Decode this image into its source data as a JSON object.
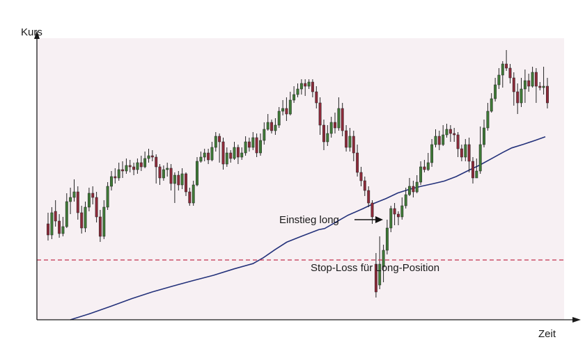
{
  "chart_data": {
    "type": "candlestick",
    "xlabel": "Zeit",
    "ylabel": "Kurs",
    "grid": false,
    "ylim": [
      0,
      100
    ],
    "colors": {
      "plot_background": "#f7f0f3",
      "bull_candle": "#3f7a37",
      "bear_candle": "#8e2a3a",
      "moving_average": "#23317a",
      "stop_loss_line": "#c2314d",
      "axis": "#1a1a1a"
    },
    "candles": [
      [
        34.5,
        30.5,
        38.5,
        28.5
      ],
      [
        30.5,
        38.5,
        40.5,
        29
      ],
      [
        39,
        35.5,
        43,
        33.5
      ],
      [
        35.5,
        31,
        38,
        29.5
      ],
      [
        31,
        33.5,
        37,
        30
      ],
      [
        33.5,
        42.5,
        45.5,
        33
      ],
      [
        42.5,
        44,
        47.5,
        38
      ],
      [
        44,
        46,
        50.5,
        42.5
      ],
      [
        46,
        38.5,
        48,
        36
      ],
      [
        38.5,
        33,
        41,
        31
      ],
      [
        33,
        40.5,
        42.5,
        31.5
      ],
      [
        40.5,
        45.5,
        47.5,
        39
      ],
      [
        45.5,
        44,
        48,
        41.5
      ],
      [
        44,
        37,
        46,
        35
      ],
      [
        37,
        30,
        39.5,
        28
      ],
      [
        30,
        40.5,
        43,
        29
      ],
      [
        40.5,
        48,
        49.5,
        39.5
      ],
      [
        48,
        51.5,
        53.5,
        46.5
      ],
      [
        51.5,
        51,
        54.5,
        49
      ],
      [
        51,
        54,
        56.5,
        50
      ],
      [
        54,
        53.5,
        57,
        51
      ],
      [
        53.5,
        55.5,
        58,
        52.5
      ],
      [
        55.5,
        55,
        57.5,
        53
      ],
      [
        55,
        54,
        56.5,
        52
      ],
      [
        54,
        56.5,
        58,
        52.5
      ],
      [
        56.5,
        55,
        59,
        53.5
      ],
      [
        55,
        58,
        60.5,
        54.5
      ],
      [
        58,
        59,
        61.5,
        56.5
      ],
      [
        59,
        58.5,
        61,
        57
      ],
      [
        58.5,
        55,
        59.5,
        49
      ],
      [
        55,
        51,
        56,
        48.5
      ],
      [
        51,
        54,
        55.5,
        50
      ],
      [
        54,
        54.5,
        56.5,
        51.5
      ],
      [
        54.5,
        49,
        56,
        46.5
      ],
      [
        49,
        52,
        53,
        42
      ],
      [
        52,
        48.5,
        53.5,
        46.5
      ],
      [
        48.5,
        52.5,
        54.5,
        47
      ],
      [
        52.5,
        46,
        53,
        44.5
      ],
      [
        46,
        42,
        47.5,
        41
      ],
      [
        42,
        48.5,
        50,
        41
      ],
      [
        48.5,
        57,
        58.5,
        48
      ],
      [
        57,
        58.5,
        60.5,
        56.5
      ],
      [
        58.5,
        60,
        61.5,
        57
      ],
      [
        60,
        57.5,
        61.5,
        56
      ],
      [
        57.5,
        62,
        64,
        57
      ],
      [
        62,
        66,
        67.5,
        60.5
      ],
      [
        66,
        64,
        67,
        56.5
      ],
      [
        64,
        56,
        65.5,
        54
      ],
      [
        56,
        60,
        62,
        55
      ],
      [
        60,
        58,
        61,
        56.5
      ],
      [
        58,
        62,
        64,
        57.5
      ],
      [
        62,
        58.5,
        63,
        56
      ],
      [
        58.5,
        60,
        62,
        57.5
      ],
      [
        60,
        64,
        66,
        59
      ],
      [
        64,
        62,
        65.5,
        60.5
      ],
      [
        62,
        65.5,
        67.5,
        61
      ],
      [
        65.5,
        60,
        67,
        58.5
      ],
      [
        60,
        64.5,
        67,
        59
      ],
      [
        64.5,
        68.5,
        71,
        63
      ],
      [
        68.5,
        71,
        74,
        68
      ],
      [
        71,
        68,
        72,
        67
      ],
      [
        68,
        70,
        72.5,
        66.5
      ],
      [
        70,
        75,
        76.5,
        69
      ],
      [
        75,
        76,
        79,
        73.5
      ],
      [
        76,
        74,
        80,
        71.5
      ],
      [
        74,
        79,
        82,
        73.5
      ],
      [
        79,
        81,
        84,
        78
      ],
      [
        81,
        83,
        85,
        80
      ],
      [
        83,
        85,
        86.5,
        81
      ],
      [
        85,
        84,
        86.5,
        80.5
      ],
      [
        84,
        85.5,
        86.5,
        83
      ],
      [
        85.5,
        82,
        86.5,
        80
      ],
      [
        82,
        78,
        84,
        76
      ],
      [
        78,
        70,
        80,
        66.5
      ],
      [
        70,
        64,
        72,
        61
      ],
      [
        64,
        67,
        70,
        62.5
      ],
      [
        67,
        71,
        73,
        65.5
      ],
      [
        71,
        69,
        74.5,
        67
      ],
      [
        69,
        76,
        80,
        68
      ],
      [
        76,
        68,
        78,
        66
      ],
      [
        68,
        62,
        70,
        60.5
      ],
      [
        62,
        66,
        69,
        60.5
      ],
      [
        66,
        60,
        68,
        57
      ],
      [
        60,
        53,
        63,
        51.5
      ],
      [
        53,
        50,
        55,
        48
      ],
      [
        50,
        46.5,
        51.5,
        44.5
      ],
      [
        46.5,
        42,
        48,
        40.5
      ],
      [
        42,
        37,
        43,
        34.5
      ],
      [
        20,
        10,
        24,
        8
      ],
      [
        12.5,
        20,
        30,
        11
      ],
      [
        19,
        25,
        27,
        13.5
      ],
      [
        25,
        33,
        36,
        23.5
      ],
      [
        33,
        40,
        41,
        31.5
      ],
      [
        40,
        38,
        42,
        34
      ],
      [
        38,
        37,
        39,
        34
      ],
      [
        37,
        41,
        44,
        36
      ],
      [
        41,
        45,
        47.5,
        40
      ],
      [
        45,
        48,
        51,
        44.5
      ],
      [
        48,
        46,
        50,
        44
      ],
      [
        46,
        49.5,
        52,
        45.5
      ],
      [
        49.5,
        55,
        57,
        48.5
      ],
      [
        55,
        54,
        57.5,
        53
      ],
      [
        54,
        56.5,
        60,
        53.5
      ],
      [
        56.5,
        63,
        65,
        55
      ],
      [
        63,
        66,
        68.5,
        62
      ],
      [
        66,
        63,
        68,
        61
      ],
      [
        63,
        66.5,
        70,
        62.5
      ],
      [
        66.5,
        68.5,
        70.5,
        65.5
      ],
      [
        68.5,
        67,
        70,
        64
      ],
      [
        67,
        66.5,
        69,
        64
      ],
      [
        66.5,
        61.5,
        67.5,
        58.5
      ],
      [
        61.5,
        58.5,
        63,
        57
      ],
      [
        58.5,
        63,
        65,
        57
      ],
      [
        63,
        57,
        65.5,
        53
      ],
      [
        57,
        51,
        58.5,
        49
      ],
      [
        51,
        53.5,
        58,
        51.5
      ],
      [
        53.5,
        63,
        69.5,
        52.5
      ],
      [
        63,
        69,
        72,
        62
      ],
      [
        69,
        75,
        78,
        68
      ],
      [
        75,
        79.5,
        81.5,
        74.5
      ],
      [
        79.5,
        84.5,
        87,
        78.5
      ],
      [
        84.5,
        88,
        90.5,
        83
      ],
      [
        88,
        92,
        93,
        83.5
      ],
      [
        92,
        90.5,
        97,
        89.5
      ],
      [
        90.5,
        87,
        92,
        85
      ],
      [
        87,
        82,
        89,
        77
      ],
      [
        82,
        78,
        85,
        74
      ],
      [
        78,
        83,
        87,
        76.5
      ],
      [
        83,
        86,
        90,
        78
      ],
      [
        86,
        84,
        88.5,
        82
      ],
      [
        84,
        89,
        91,
        83.5
      ],
      [
        89,
        84,
        90.5,
        78
      ],
      [
        84,
        83.5,
        85.5,
        82.5
      ],
      [
        83.5,
        84,
        91,
        81
      ],
      [
        84,
        78,
        87,
        76
      ]
    ],
    "moving_average": [
      [
        0.0,
        0
      ],
      [
        0.07,
        2.3
      ],
      [
        0.14,
        4.9
      ],
      [
        0.21,
        7.6
      ],
      [
        0.28,
        10.0
      ],
      [
        0.35,
        12.1
      ],
      [
        0.42,
        14.1
      ],
      [
        0.49,
        16.0
      ],
      [
        0.56,
        18.3
      ],
      [
        0.625,
        20.2
      ],
      [
        0.66,
        22.3
      ],
      [
        0.7,
        25.2
      ],
      [
        0.74,
        27.9
      ],
      [
        0.79,
        30.0
      ],
      [
        0.85,
        32.4
      ],
      [
        0.87,
        32.8
      ],
      [
        0.91,
        35.2
      ],
      [
        0.95,
        37.6
      ],
      [
        1.0,
        39.9
      ],
      [
        1.04,
        41.9
      ],
      [
        1.08,
        43.6
      ],
      [
        1.12,
        45.6
      ],
      [
        1.16,
        46.9
      ],
      [
        1.2,
        48.0
      ],
      [
        1.24,
        48.9
      ],
      [
        1.28,
        49.9
      ],
      [
        1.32,
        51.5
      ],
      [
        1.36,
        53.6
      ],
      [
        1.4,
        55.6
      ],
      [
        1.44,
        57.9
      ],
      [
        1.48,
        60.2
      ],
      [
        1.51,
        61.8
      ],
      [
        1.55,
        63.1
      ],
      [
        1.59,
        64.5
      ],
      [
        1.625,
        65.8
      ]
    ],
    "stop_loss_level": 21.5,
    "annotations": [
      {
        "text": "Einstieg long",
        "points_to_candle": 90
      },
      {
        "text": "Stop-Loss für Long-Position"
      }
    ]
  }
}
